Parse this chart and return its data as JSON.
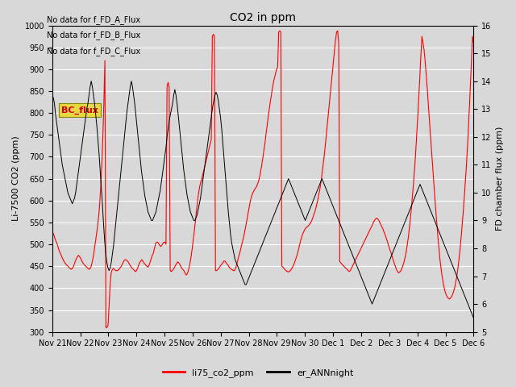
{
  "title": "CO2 in ppm",
  "ylabel_left": "Li-7500 CO2 (ppm)",
  "ylabel_right": "FD chamber flux (ppm)",
  "ylim_left": [
    300,
    1000
  ],
  "ylim_right": [
    5.0,
    16.0
  ],
  "yticks_left": [
    300,
    350,
    400,
    450,
    500,
    550,
    600,
    650,
    700,
    750,
    800,
    850,
    900,
    950,
    1000
  ],
  "yticks_right": [
    5.0,
    6.0,
    7.0,
    8.0,
    9.0,
    10.0,
    11.0,
    12.0,
    13.0,
    14.0,
    15.0,
    16.0
  ],
  "no_data_texts": [
    "No data for f_FD_A_Flux",
    "No data for f_FD_B_Flux",
    "No data for f_FD_C_Flux"
  ],
  "bc_flux_label": "BC_flux",
  "legend_labels": [
    "li75_co2_ppm",
    "er_ANNnight"
  ],
  "legend_colors": [
    "#ff0000",
    "#000000"
  ],
  "background_color": "#d8d8d8",
  "red_line_color": "#ff0000",
  "black_line_color": "#000000",
  "xticklabels": [
    "Nov 21",
    "Nov 22",
    "Nov 23",
    "Nov 24",
    "Nov 25",
    "Nov 26",
    "Nov 27",
    "Nov 28",
    "Nov 29",
    "Nov 30",
    "Dec 1",
    "Dec 2",
    "Dec 3",
    "Dec 4",
    "Dec 5",
    "Dec 6"
  ],
  "red_data": [
    530,
    525,
    518,
    510,
    505,
    498,
    490,
    483,
    478,
    472,
    467,
    462,
    458,
    455,
    452,
    450,
    447,
    445,
    443,
    445,
    448,
    455,
    462,
    468,
    472,
    475,
    472,
    468,
    463,
    458,
    455,
    452,
    450,
    447,
    445,
    443,
    445,
    450,
    460,
    472,
    488,
    505,
    522,
    540,
    562,
    590,
    630,
    680,
    740,
    820,
    920,
    310,
    310,
    315,
    360,
    410,
    435,
    442,
    445,
    443,
    440,
    440,
    440,
    442,
    445,
    448,
    452,
    457,
    462,
    465,
    465,
    463,
    460,
    456,
    452,
    448,
    445,
    443,
    440,
    438,
    440,
    445,
    452,
    458,
    462,
    465,
    462,
    458,
    455,
    452,
    450,
    448,
    453,
    460,
    468,
    475,
    480,
    490,
    500,
    505,
    505,
    502,
    498,
    495,
    498,
    502,
    505,
    505,
    500,
    860,
    870,
    860,
    440,
    438,
    440,
    443,
    447,
    452,
    456,
    460,
    458,
    455,
    450,
    445,
    443,
    440,
    435,
    430,
    432,
    438,
    448,
    460,
    475,
    492,
    512,
    532,
    555,
    578,
    600,
    618,
    632,
    642,
    650,
    660,
    670,
    680,
    690,
    700,
    710,
    720,
    730,
    740,
    975,
    980,
    975,
    440,
    440,
    442,
    445,
    448,
    452,
    455,
    458,
    462,
    462,
    458,
    455,
    452,
    448,
    445,
    443,
    442,
    440,
    440,
    445,
    452,
    462,
    472,
    480,
    490,
    500,
    510,
    520,
    532,
    545,
    558,
    572,
    585,
    598,
    608,
    615,
    620,
    625,
    628,
    632,
    638,
    645,
    655,
    668,
    682,
    698,
    715,
    732,
    752,
    770,
    790,
    808,
    825,
    840,
    855,
    870,
    880,
    890,
    900,
    905,
    985,
    988,
    985,
    450,
    448,
    445,
    442,
    440,
    438,
    437,
    438,
    440,
    443,
    447,
    452,
    458,
    465,
    472,
    480,
    490,
    500,
    510,
    518,
    525,
    530,
    535,
    538,
    540,
    542,
    545,
    548,
    552,
    558,
    565,
    572,
    580,
    590,
    600,
    612,
    625,
    640,
    658,
    678,
    698,
    720,
    745,
    770,
    795,
    820,
    845,
    870,
    895,
    920,
    945,
    968,
    985,
    988,
    960,
    460,
    458,
    455,
    452,
    450,
    447,
    445,
    443,
    440,
    438,
    440,
    445,
    450,
    455,
    460,
    465,
    470,
    475,
    480,
    485,
    490,
    495,
    500,
    505,
    510,
    515,
    520,
    525,
    530,
    535,
    540,
    545,
    550,
    555,
    558,
    560,
    558,
    555,
    550,
    545,
    540,
    535,
    528,
    522,
    515,
    508,
    500,
    492,
    485,
    478,
    470,
    462,
    455,
    448,
    442,
    437,
    435,
    437,
    440,
    445,
    452,
    460,
    470,
    482,
    498,
    515,
    535,
    558,
    582,
    610,
    640,
    672,
    708,
    748,
    790,
    835,
    882,
    932,
    975,
    960,
    945,
    920,
    890,
    858,
    822,
    788,
    752,
    718,
    682,
    648,
    615,
    582,
    552,
    522,
    495,
    468,
    448,
    430,
    415,
    402,
    392,
    385,
    380,
    377,
    375,
    377,
    380,
    385,
    392,
    400,
    412,
    425,
    442,
    462,
    485,
    510,
    538,
    568,
    600,
    635,
    672,
    712,
    758,
    808,
    862,
    918,
    975,
    960
  ],
  "black_data": [
    13.5,
    13.4,
    13.2,
    12.8,
    12.5,
    12.2,
    11.9,
    11.6,
    11.3,
    11.0,
    10.8,
    10.6,
    10.4,
    10.2,
    10.0,
    9.9,
    9.8,
    9.7,
    9.6,
    9.7,
    9.8,
    10.0,
    10.3,
    10.6,
    10.9,
    11.2,
    11.5,
    11.8,
    12.1,
    12.4,
    12.7,
    13.0,
    13.2,
    13.5,
    13.8,
    14.0,
    13.8,
    13.5,
    13.2,
    12.8,
    12.4,
    11.9,
    11.4,
    10.8,
    10.2,
    9.6,
    8.9,
    8.3,
    7.8,
    7.5,
    7.3,
    7.2,
    7.3,
    7.5,
    7.8,
    8.1,
    8.5,
    8.9,
    9.3,
    9.7,
    10.1,
    10.5,
    10.9,
    11.3,
    11.7,
    12.1,
    12.5,
    12.9,
    13.2,
    13.5,
    13.8,
    14.0,
    13.8,
    13.5,
    13.2,
    12.8,
    12.4,
    12.0,
    11.6,
    11.2,
    10.8,
    10.5,
    10.2,
    9.9,
    9.7,
    9.5,
    9.3,
    9.2,
    9.1,
    9.0,
    9.0,
    9.1,
    9.2,
    9.3,
    9.5,
    9.7,
    9.9,
    10.1,
    10.4,
    10.7,
    11.0,
    11.3,
    11.6,
    12.0,
    12.3,
    12.6,
    12.8,
    13.0,
    13.2,
    13.5,
    13.7,
    13.5,
    13.2,
    12.8,
    12.4,
    12.0,
    11.6,
    11.2,
    10.8,
    10.5,
    10.2,
    9.9,
    9.7,
    9.5,
    9.3,
    9.2,
    9.1,
    9.0,
    9.0,
    9.1,
    9.2,
    9.4,
    9.6,
    9.8,
    10.1,
    10.4,
    10.7,
    11.0,
    11.3,
    11.6,
    11.9,
    12.2,
    12.5,
    12.8,
    13.1,
    13.3,
    13.5,
    13.6,
    13.5,
    13.3,
    13.0,
    12.7,
    12.3,
    11.8,
    11.3,
    10.8,
    10.3,
    9.8,
    9.3,
    8.9,
    8.5,
    8.2,
    8.0,
    7.8,
    7.6,
    7.5,
    7.4,
    7.3,
    7.2,
    7.1,
    7.0,
    6.9,
    6.8,
    6.7,
    6.7,
    6.8,
    6.9,
    7.0,
    7.1,
    7.2,
    7.3,
    7.4,
    7.5,
    7.6,
    7.7,
    7.8,
    7.9,
    8.0,
    8.1,
    8.2,
    8.3,
    8.4,
    8.5,
    8.6,
    8.7,
    8.8,
    8.9,
    9.0,
    9.1,
    9.2,
    9.3,
    9.4,
    9.5,
    9.6,
    9.7,
    9.8,
    9.9,
    10.0,
    10.1,
    10.2,
    10.3,
    10.4,
    10.5,
    10.4,
    10.3,
    10.2,
    10.1,
    10.0,
    9.9,
    9.8,
    9.7,
    9.6,
    9.5,
    9.4,
    9.3,
    9.2,
    9.1,
    9.0,
    9.1,
    9.2,
    9.3,
    9.4,
    9.5,
    9.6,
    9.7,
    9.8,
    9.9,
    10.0,
    10.1,
    10.2,
    10.3,
    10.4,
    10.5,
    10.4,
    10.3,
    10.2,
    10.1,
    10.0,
    9.9,
    9.8,
    9.7,
    9.6,
    9.5,
    9.4,
    9.3,
    9.2,
    9.1,
    9.0,
    8.9,
    8.8,
    8.7,
    8.6,
    8.5,
    8.4,
    8.3,
    8.2,
    8.1,
    8.0,
    7.9,
    7.8,
    7.7,
    7.6,
    7.5,
    7.4,
    7.3,
    7.2,
    7.1,
    7.0,
    6.9,
    6.8,
    6.7,
    6.6,
    6.5,
    6.4,
    6.3,
    6.2,
    6.1,
    6.0,
    6.1,
    6.2,
    6.3,
    6.4,
    6.5,
    6.6,
    6.7,
    6.8,
    6.9,
    7.0,
    7.1,
    7.2,
    7.3,
    7.4,
    7.5,
    7.6,
    7.7,
    7.8,
    7.9,
    8.0,
    8.1,
    8.2,
    8.3,
    8.4,
    8.5,
    8.6,
    8.7,
    8.8,
    8.9,
    9.0,
    9.1,
    9.2,
    9.3,
    9.4,
    9.5,
    9.6,
    9.7,
    9.8,
    9.9,
    10.0,
    10.1,
    10.2,
    10.3,
    10.2,
    10.1,
    10.0,
    9.9,
    9.8,
    9.7,
    9.6,
    9.5,
    9.4,
    9.3,
    9.2,
    9.1,
    9.0,
    8.9,
    8.8,
    8.7,
    8.6,
    8.5,
    8.4,
    8.3,
    8.2,
    8.1,
    8.0,
    7.9,
    7.8,
    7.7,
    7.6,
    7.5,
    7.4,
    7.3,
    7.2,
    7.1,
    7.0,
    6.9,
    6.8,
    6.7,
    6.6,
    6.5,
    6.4,
    6.3,
    6.2,
    6.1,
    6.0,
    5.9,
    5.8,
    5.7,
    5.6,
    5.5
  ]
}
